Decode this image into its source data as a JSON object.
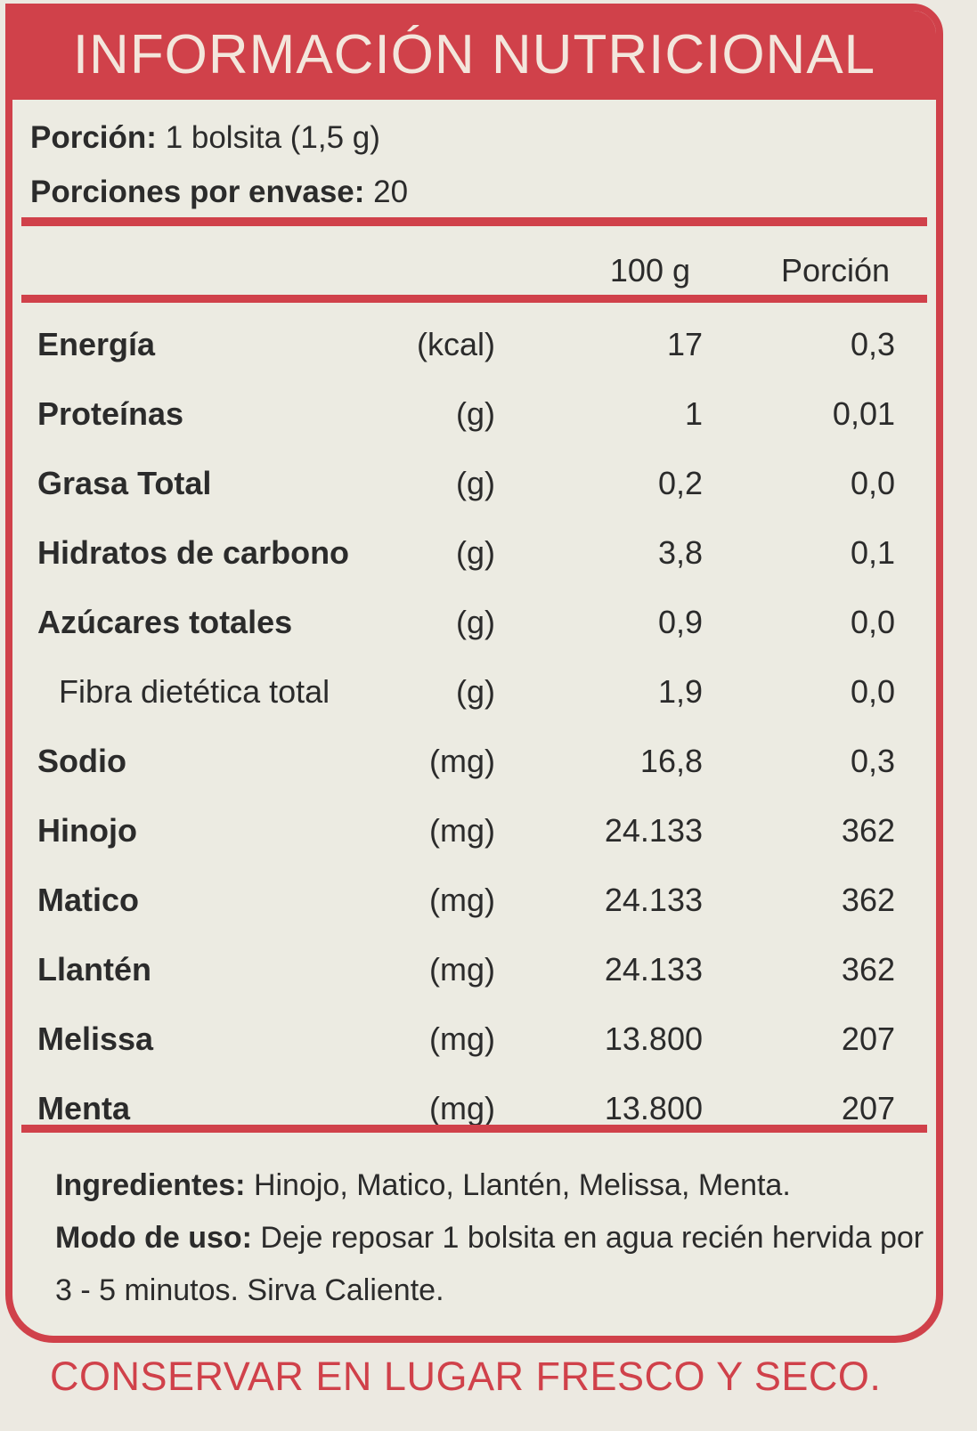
{
  "header": {
    "title": "INFORMACIÓN NUTRICIONAL"
  },
  "serving": {
    "portion_label": "Porción:",
    "portion_value": "1 bolsita (1,5 g)",
    "per_container_label": "Porciones por envase:",
    "per_container_value": "20"
  },
  "columns": {
    "per100": "100 g",
    "per_portion": "Porción"
  },
  "rows": [
    {
      "name": "Energía",
      "unit": "(kcal)",
      "v100": "17",
      "vpor": "0,3"
    },
    {
      "name": "Proteínas",
      "unit": "(g)",
      "v100": "1",
      "vpor": "0,01"
    },
    {
      "name": "Grasa Total",
      "unit": "(g)",
      "v100": "0,2",
      "vpor": "0,0"
    },
    {
      "name": "Hidratos de carbono",
      "unit": "(g)",
      "v100": "3,8",
      "vpor": "0,1"
    },
    {
      "name": "Azúcares totales",
      "unit": "(g)",
      "v100": "0,9",
      "vpor": "0,0"
    },
    {
      "name": "Fibra dietética total",
      "unit": "(g)",
      "v100": "1,9",
      "vpor": "0,0"
    },
    {
      "name": "Sodio",
      "unit": "(mg)",
      "v100": "16,8",
      "vpor": "0,3"
    },
    {
      "name": "Hinojo",
      "unit": "(mg)",
      "v100": "24.133",
      "vpor": "362"
    },
    {
      "name": "Matico",
      "unit": "(mg)",
      "v100": "24.133",
      "vpor": "362"
    },
    {
      "name": "Llantén",
      "unit": "(mg)",
      "v100": "24.133",
      "vpor": "362"
    },
    {
      "name": "Melissa",
      "unit": "(mg)",
      "v100": "13.800",
      "vpor": "207"
    },
    {
      "name": "Menta",
      "unit": "(mg)",
      "v100": "13.800",
      "vpor": "207"
    }
  ],
  "ingredients": {
    "label": "Ingredientes:",
    "text": "Hinojo, Matico, Llantén, Melissa, Menta.",
    "usage_label": "Modo de uso:",
    "usage_text": "Deje reposar 1 bolsita en agua recién hervida por 3 - 5 minutos. Sirva Caliente."
  },
  "footer": {
    "text": "CONSERVAR EN LUGAR FRESCO Y SECO."
  },
  "colors": {
    "accent": "#d0414a",
    "background": "#ecebe2",
    "text": "#2b2b2b"
  }
}
